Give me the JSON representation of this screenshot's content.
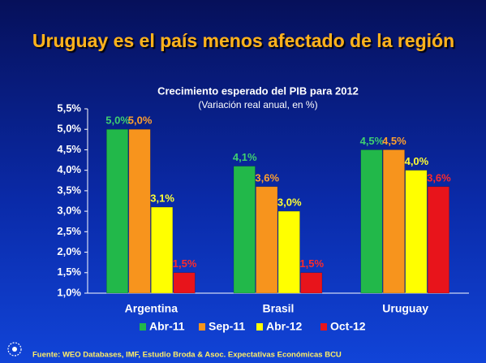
{
  "chart_data": {
    "type": "bar",
    "heading": "Uruguay es el país menos afectado de la región",
    "title": "Crecimiento esperado del PIB para 2012",
    "subtitle": "(Variación real anual, en %)",
    "categories": [
      "Argentina",
      "Brasil",
      "Uruguay"
    ],
    "series": [
      {
        "name": "Abr-11",
        "color": "#22b84a",
        "label_color": "#3fd070",
        "values": [
          5.0,
          4.1,
          4.5
        ],
        "value_labels": [
          "5,0%",
          "4,1%",
          "4,5%"
        ]
      },
      {
        "name": "Sep-11",
        "color": "#f7941d",
        "label_color": "#ff9f2e",
        "values": [
          5.0,
          3.6,
          4.5
        ],
        "value_labels": [
          "5,0%",
          "3,6%",
          "4,5%"
        ]
      },
      {
        "name": "Abr-12",
        "color": "#ffff00",
        "label_color": "#ffff33",
        "values": [
          3.1,
          3.0,
          4.0
        ],
        "value_labels": [
          "3,1%",
          "3,0%",
          "4,0%"
        ]
      },
      {
        "name": "Oct-12",
        "color": "#e8141b",
        "label_color": "#ff2a2a",
        "values": [
          1.5,
          1.5,
          3.6
        ],
        "value_labels": [
          "1,5%",
          "1,5%",
          "3,6%"
        ]
      }
    ],
    "ylim": [
      1.0,
      5.5
    ],
    "yticks": [
      {
        "value": 1.0,
        "label": "1,0%"
      },
      {
        "value": 1.5,
        "label": "1,5%"
      },
      {
        "value": 2.0,
        "label": "2,0%"
      },
      {
        "value": 2.5,
        "label": "2,5%"
      },
      {
        "value": 3.0,
        "label": "3,0%"
      },
      {
        "value": 3.5,
        "label": "3,5%"
      },
      {
        "value": 4.0,
        "label": "4,0%"
      },
      {
        "value": 4.5,
        "label": "4,5%"
      },
      {
        "value": 5.0,
        "label": "5,0%"
      },
      {
        "value": 5.5,
        "label": "5,5%"
      }
    ],
    "source": "Fuente: WEO Databases, IMF, Estudio Broda & Asoc. Expectativas Económicas BCU"
  }
}
